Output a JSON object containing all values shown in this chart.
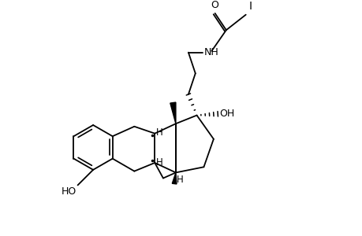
{
  "background_color": "#ffffff",
  "line_color": "#000000",
  "line_width": 1.3,
  "text_color": "#000000",
  "font_size": 9,
  "figsize": [
    4.6,
    3.0
  ],
  "dpi": 100,
  "xlim": [
    0,
    11
  ],
  "ylim": [
    0,
    8
  ]
}
